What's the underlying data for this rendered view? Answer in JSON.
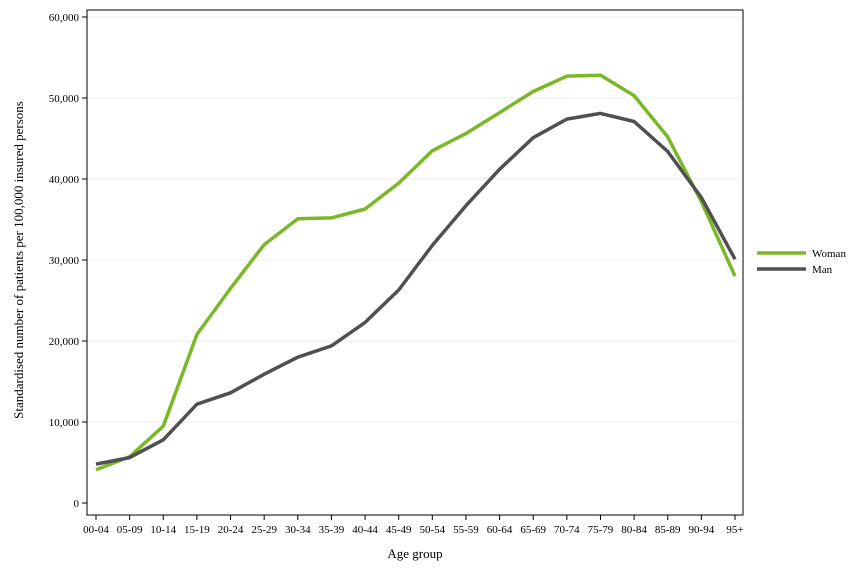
{
  "chart_data": {
    "type": "line",
    "xlabel": "Age group",
    "ylabel": "Standardised number of patients per 100,000 insured persons",
    "ylim": [
      0,
      60000
    ],
    "yticks": [
      0,
      10000,
      20000,
      30000,
      40000,
      50000,
      60000
    ],
    "ytick_labels": [
      "0",
      "10,000",
      "20,000",
      "30,000",
      "40,000",
      "50,000",
      "60,000"
    ],
    "grid": true,
    "legend_position": "right",
    "categories": [
      "00-04",
      "05-09",
      "10-14",
      "15-19",
      "20-24",
      "25-29",
      "30-34",
      "35-39",
      "40-44",
      "45-49",
      "50-54",
      "55-59",
      "60-64",
      "65-69",
      "70-74",
      "75-79",
      "80-84",
      "85-89",
      "90-94",
      "95+"
    ],
    "series": [
      {
        "name": "Woman",
        "color": "#7ab828",
        "values": [
          4100,
          5700,
          9500,
          20800,
          26500,
          31900,
          35100,
          35200,
          36300,
          39500,
          43500,
          45600,
          48200,
          50800,
          52700,
          52800,
          50300,
          45200,
          37200,
          28000
        ]
      },
      {
        "name": "Man",
        "color": "#505050",
        "values": [
          4800,
          5600,
          7800,
          12200,
          13600,
          15900,
          18000,
          19400,
          22300,
          26300,
          31800,
          36700,
          41200,
          45100,
          47400,
          48100,
          47100,
          43400,
          37700,
          30100
        ]
      }
    ]
  }
}
